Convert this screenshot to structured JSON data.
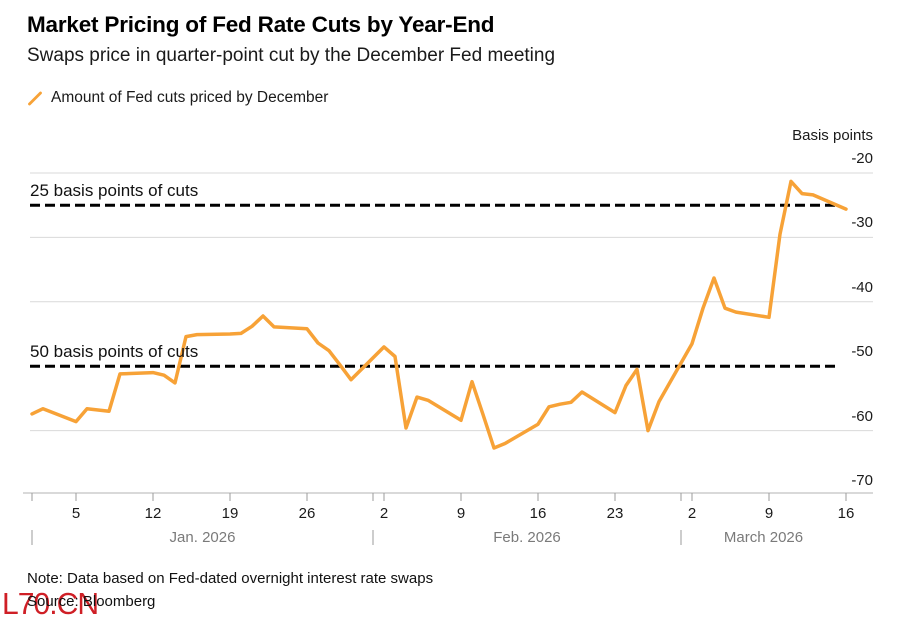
{
  "title": "Market Pricing of Fed Rate Cuts by Year-End",
  "subtitle": "Swaps price in quarter-point cut by the December Fed meeting",
  "legend": {
    "icon": "slash-icon",
    "label": "Amount of Fed cuts priced by December"
  },
  "y_axis": {
    "unit_label": "Basis points",
    "ticks": [
      -20,
      -30,
      -40,
      -50,
      -60,
      -70
    ]
  },
  "x_axis": {
    "week_ticks": [
      {
        "label": "5",
        "date": "2026-01-05"
      },
      {
        "label": "12",
        "date": "2026-01-12"
      },
      {
        "label": "19",
        "date": "2026-01-19"
      },
      {
        "label": "26",
        "date": "2026-01-26"
      },
      {
        "label": "2",
        "date": "2026-02-02"
      },
      {
        "label": "9",
        "date": "2026-02-09"
      },
      {
        "label": "16",
        "date": "2026-02-16"
      },
      {
        "label": "23",
        "date": "2026-02-23"
      },
      {
        "label": "2",
        "date": "2026-03-02"
      },
      {
        "label": "9",
        "date": "2026-03-09"
      },
      {
        "label": "16",
        "date": "2026-03-16"
      }
    ],
    "months": [
      {
        "label": "Jan. 2026",
        "start": "2026-01-01"
      },
      {
        "label": "Feb. 2026",
        "start": "2026-02-01"
      },
      {
        "label": "March 2026",
        "start": "2026-03-01"
      }
    ]
  },
  "annotations": [
    {
      "label": "25 basis points of cuts",
      "value": -25
    },
    {
      "label": "50 basis points of cuts",
      "value": -50
    }
  ],
  "note": "Note: Data based on Fed-dated overnight interest rate swaps",
  "source": "Source: Bloomberg",
  "watermark": "L70.CN",
  "colors": {
    "line_orange": "#F7A237",
    "dashed_black": "#000000",
    "gridline_gray": "#d9d9d9",
    "axis_gray": "#9b9b9b",
    "month_text_gray": "#7a7a7a",
    "watermark_red": "#cf1f26"
  },
  "chart_data": {
    "type": "line",
    "title": "Market Pricing of Fed Rate Cuts by Year-End",
    "subtitle": "Swaps price in quarter-point cut by the December Fed meeting",
    "series_name": "Amount of Fed cuts priced by December",
    "xlabel": "",
    "ylabel": "Basis points",
    "ylim": [
      -70,
      -20
    ],
    "grid": true,
    "reference_lines": [
      -25,
      -50
    ],
    "x": [
      "2026-01-01",
      "2026-01-02",
      "2026-01-05",
      "2026-01-06",
      "2026-01-07",
      "2026-01-08",
      "2026-01-09",
      "2026-01-12",
      "2026-01-13",
      "2026-01-14",
      "2026-01-15",
      "2026-01-16",
      "2026-01-19",
      "2026-01-20",
      "2026-01-21",
      "2026-01-22",
      "2026-01-23",
      "2026-01-26",
      "2026-01-27",
      "2026-01-28",
      "2026-01-29",
      "2026-01-30",
      "2026-02-02",
      "2026-02-03",
      "2026-02-04",
      "2026-02-05",
      "2026-02-06",
      "2026-02-09",
      "2026-02-10",
      "2026-02-11",
      "2026-02-12",
      "2026-02-13",
      "2026-02-16",
      "2026-02-17",
      "2026-02-18",
      "2026-02-19",
      "2026-02-20",
      "2026-02-23",
      "2026-02-24",
      "2026-02-25",
      "2026-02-26",
      "2026-02-27",
      "2026-03-02",
      "2026-03-03",
      "2026-03-04",
      "2026-03-05",
      "2026-03-06",
      "2026-03-09",
      "2026-03-10",
      "2026-03-11",
      "2026-03-12",
      "2026-03-13",
      "2026-03-16"
    ],
    "values": [
      -57.4,
      -56.6,
      -58.6,
      -56.6,
      -56.8,
      -57.0,
      -51.2,
      -51.0,
      -51.4,
      -52.6,
      -45.4,
      -45.1,
      -45.0,
      -44.9,
      -43.8,
      -42.2,
      -43.9,
      -44.2,
      -46.4,
      -47.6,
      -49.8,
      -52.1,
      -47.0,
      -48.5,
      -59.6,
      -54.8,
      -55.3,
      -58.4,
      -52.4,
      -57.5,
      -62.7,
      -62.0,
      -59.0,
      -56.3,
      -55.9,
      -55.6,
      -54.0,
      -57.2,
      -53.0,
      -50.5,
      -60.0,
      -55.5,
      -46.5,
      -41.0,
      -36.3,
      -41.0,
      -41.6,
      -42.4,
      -29.5,
      -21.3,
      -23.2,
      -23.4,
      -25.6
    ]
  }
}
